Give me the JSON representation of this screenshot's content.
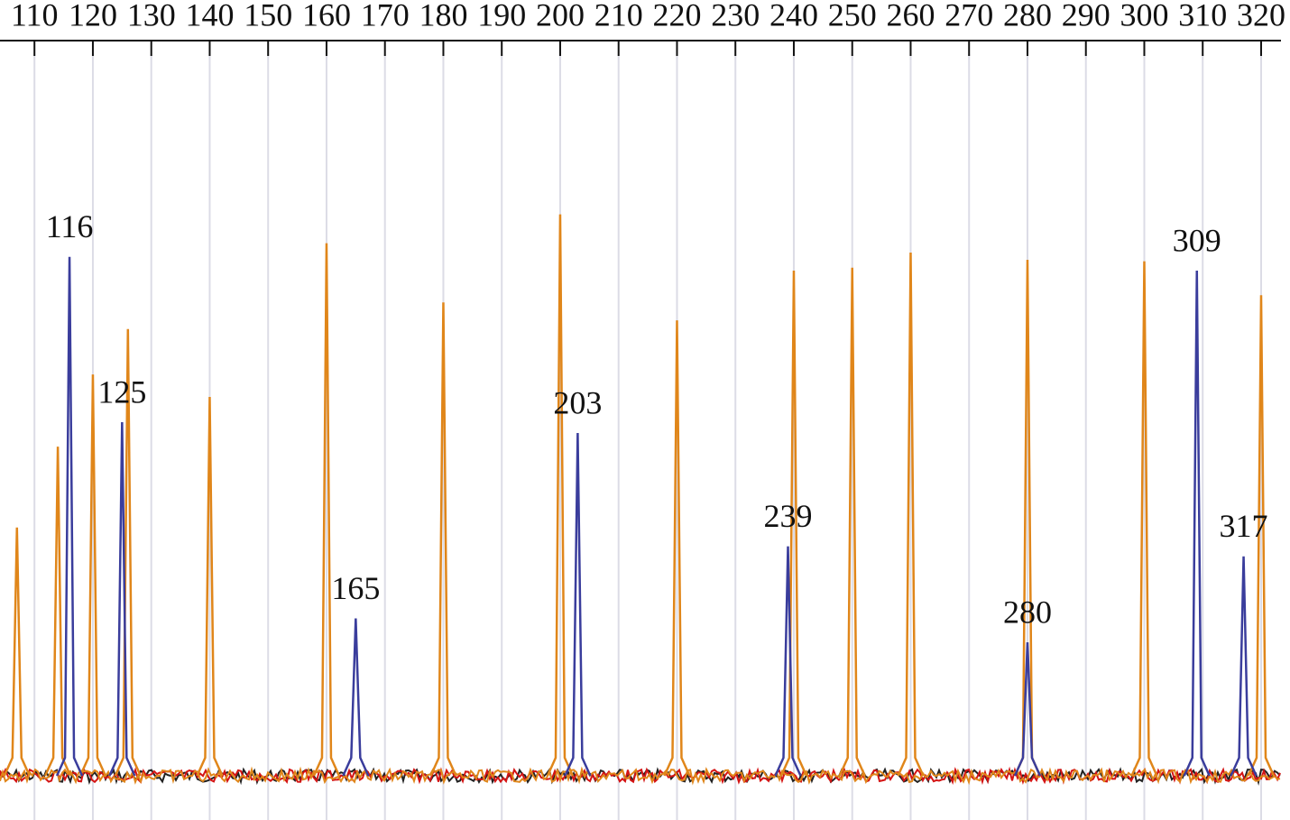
{
  "chart_data": {
    "type": "peaks",
    "xlim": [
      104.1,
      323.4
    ],
    "xticks": [
      110,
      120,
      130,
      140,
      150,
      160,
      170,
      180,
      190,
      200,
      210,
      220,
      230,
      240,
      250,
      260,
      270,
      280,
      290,
      300,
      310,
      320
    ],
    "ylim": [
      0,
      100
    ],
    "grid": true,
    "series": [
      {
        "color": "#e0861a",
        "x": [
          107,
          114,
          120,
          126,
          140,
          160,
          180,
          200,
          220,
          240,
          250,
          260,
          280,
          300,
          320
        ],
        "values": [
          34.4,
          45.6,
          55.6,
          61.9,
          52.5,
          73.8,
          65.6,
          77.8,
          63.1,
          70,
          70.4,
          72.5,
          71.5,
          71.3,
          66.6
        ],
        "labeled": false
      },
      {
        "color": "#3a3d9c",
        "x": [
          116,
          125,
          165,
          203,
          239,
          280,
          309,
          317
        ],
        "values": [
          71.9,
          49,
          21.8,
          47.5,
          31.8,
          18.5,
          70,
          30.4
        ],
        "labeled": true
      }
    ]
  }
}
